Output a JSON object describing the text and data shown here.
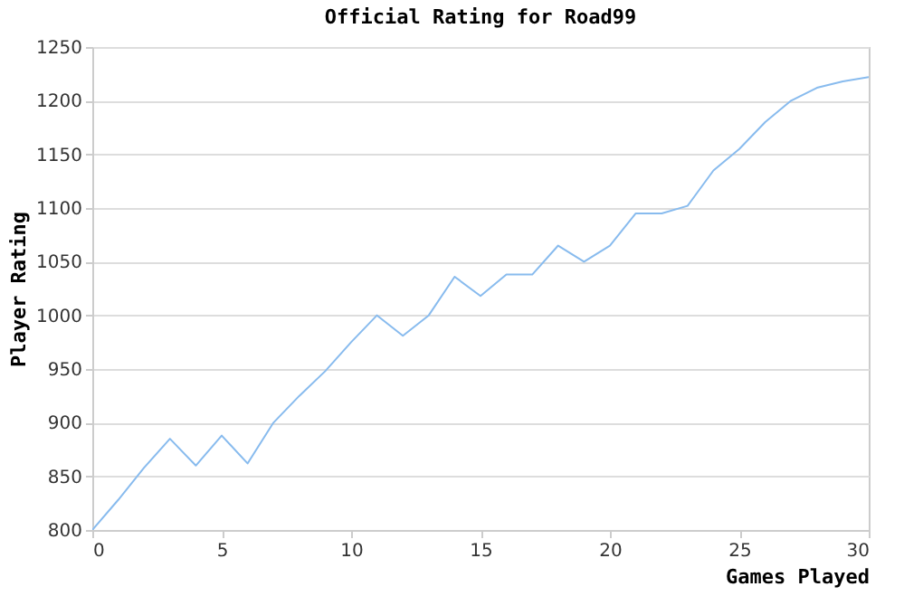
{
  "chart_data": {
    "type": "line",
    "title": "Official Rating for Road99",
    "xlabel": "Games Played",
    "ylabel": "Player Rating",
    "x": [
      0,
      1,
      2,
      3,
      4,
      5,
      6,
      7,
      8,
      9,
      10,
      11,
      12,
      13,
      14,
      15,
      16,
      17,
      18,
      19,
      20,
      21,
      22,
      23,
      24,
      25,
      26,
      27,
      28,
      29,
      30
    ],
    "series": [
      {
        "color": "#88bbee",
        "values": [
          800,
          828,
          858,
          885,
          860,
          888,
          862,
          900,
          925,
          948,
          975,
          1000,
          981,
          1000,
          1036,
          1018,
          1038,
          1038,
          1065,
          1050,
          1065,
          1095,
          1095,
          1102,
          1135,
          1155,
          1180,
          1200,
          1212,
          1218,
          1222
        ]
      }
    ],
    "xlim": [
      0,
      30
    ],
    "xticks": [
      0,
      5,
      10,
      15,
      20,
      25,
      30
    ],
    "ylim": [
      800,
      1250
    ],
    "yticks": [
      800,
      850,
      900,
      950,
      1000,
      1050,
      1100,
      1150,
      1200,
      1250
    ],
    "grid": "y",
    "legend": false,
    "marker": "none",
    "line_style": "solid"
  }
}
